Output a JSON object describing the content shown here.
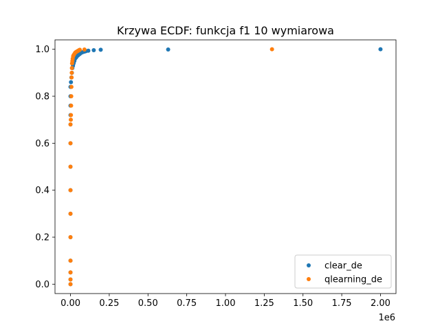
{
  "chart_data": {
    "type": "scatter",
    "title": "Krzywa ECDF: funkcja f1 10 wymiarowa",
    "xlabel": "",
    "ylabel": "",
    "x_offset_label": "1e6",
    "xlim": [
      -100000,
      2100000
    ],
    "ylim": [
      -0.04,
      1.04
    ],
    "x_ticks": [
      0,
      250000,
      500000,
      750000,
      1000000,
      1250000,
      1500000,
      1750000,
      2000000
    ],
    "x_tick_labels": [
      "0.00",
      "0.25",
      "0.50",
      "0.75",
      "1.00",
      "1.25",
      "1.50",
      "1.75",
      "2.00"
    ],
    "y_ticks": [
      0.0,
      0.2,
      0.4,
      0.6,
      0.8,
      1.0
    ],
    "y_tick_labels": [
      "0.0",
      "0.2",
      "0.4",
      "0.6",
      "0.8",
      "1.0"
    ],
    "grid": false,
    "legend_position": "bottom-right",
    "series": [
      {
        "name": "clear_de",
        "color": "#1f77b4",
        "points": [
          [
            0,
            0.0
          ],
          [
            0,
            0.02
          ],
          [
            0,
            0.05
          ],
          [
            0,
            0.1
          ],
          [
            0,
            0.2
          ],
          [
            0,
            0.3
          ],
          [
            0,
            0.4
          ],
          [
            0,
            0.5
          ],
          [
            0,
            0.6
          ],
          [
            0,
            0.68
          ],
          [
            0,
            0.72
          ],
          [
            0,
            0.76
          ],
          [
            0,
            0.8
          ],
          [
            0,
            0.84
          ],
          [
            3000,
            0.86
          ],
          [
            6000,
            0.88
          ],
          [
            9000,
            0.9
          ],
          [
            12000,
            0.92
          ],
          [
            16000,
            0.93
          ],
          [
            20000,
            0.94
          ],
          [
            25000,
            0.95
          ],
          [
            30000,
            0.96
          ],
          [
            36000,
            0.965
          ],
          [
            42000,
            0.97
          ],
          [
            50000,
            0.975
          ],
          [
            60000,
            0.98
          ],
          [
            70000,
            0.985
          ],
          [
            80000,
            0.988
          ],
          [
            90000,
            0.99
          ],
          [
            100000,
            0.992
          ],
          [
            115000,
            0.994
          ],
          [
            150000,
            0.996
          ],
          [
            195000,
            0.998
          ],
          [
            630000,
            0.999
          ],
          [
            2000000,
            1.0
          ]
        ]
      },
      {
        "name": "qlearning_de",
        "color": "#ff7f0e",
        "points": [
          [
            0,
            0.0
          ],
          [
            0,
            0.02
          ],
          [
            0,
            0.05
          ],
          [
            0,
            0.1
          ],
          [
            0,
            0.2
          ],
          [
            0,
            0.3
          ],
          [
            0,
            0.4
          ],
          [
            0,
            0.5
          ],
          [
            0,
            0.6
          ],
          [
            0,
            0.68
          ],
          [
            2000,
            0.7
          ],
          [
            3000,
            0.72
          ],
          [
            4000,
            0.76
          ],
          [
            5000,
            0.8
          ],
          [
            6000,
            0.84
          ],
          [
            7000,
            0.88
          ],
          [
            8000,
            0.9
          ],
          [
            9000,
            0.92
          ],
          [
            10000,
            0.94
          ],
          [
            12000,
            0.95
          ],
          [
            14000,
            0.96
          ],
          [
            17000,
            0.97
          ],
          [
            20000,
            0.975
          ],
          [
            25000,
            0.98
          ],
          [
            30000,
            0.985
          ],
          [
            35000,
            0.988
          ],
          [
            40000,
            0.99
          ],
          [
            45000,
            0.992
          ],
          [
            50000,
            0.994
          ],
          [
            55000,
            0.996
          ],
          [
            60000,
            0.998
          ],
          [
            90000,
            0.999
          ],
          [
            1300000,
            1.0
          ]
        ]
      }
    ]
  }
}
